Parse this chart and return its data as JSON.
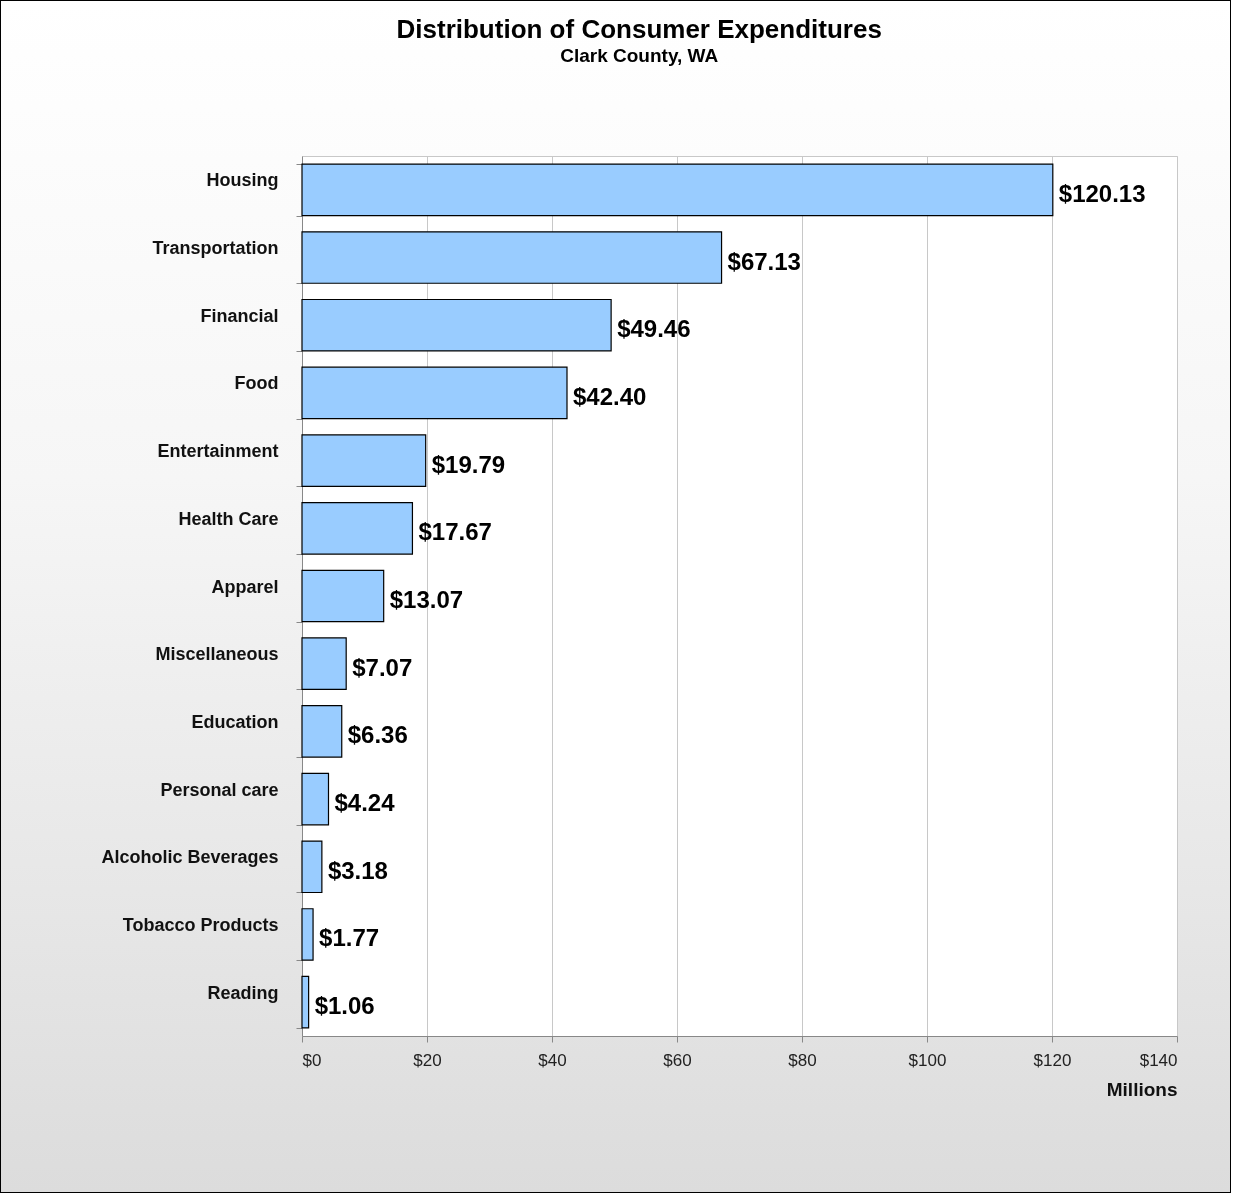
{
  "chart_data": {
    "type": "bar",
    "orientation": "horizontal",
    "title": "Distribution of Consumer Expenditures",
    "subtitle": "Clark County, WA",
    "xlabel": "Millions",
    "categories": [
      "Housing",
      "Transportation",
      "Financial",
      "Food",
      "Entertainment",
      "Health Care",
      "Apparel",
      "Miscellaneous",
      "Education",
      "Personal care",
      "Alcoholic Beverages",
      "Tobacco Products",
      "Reading"
    ],
    "values": [
      120.13,
      67.13,
      49.46,
      42.4,
      19.79,
      17.67,
      13.07,
      7.07,
      6.36,
      4.24,
      3.18,
      1.77,
      1.06
    ],
    "value_labels": [
      "$120.13",
      "$67.13",
      "$49.46",
      "$42.40",
      "$19.79",
      "$17.67",
      "$13.07",
      "$7.07",
      "$6.36",
      "$4.24",
      "$3.18",
      "$1.77",
      "$1.06"
    ],
    "color": "#99ccff",
    "xlim": [
      0,
      140
    ],
    "xticks": [
      {
        "value": 0,
        "label": "$0"
      },
      {
        "value": 20,
        "label": "$20"
      },
      {
        "value": 40,
        "label": "$40"
      },
      {
        "value": 60,
        "label": "$60"
      },
      {
        "value": 80,
        "label": "$80"
      },
      {
        "value": 100,
        "label": "$100"
      },
      {
        "value": 120,
        "label": "$120"
      },
      {
        "value": 140,
        "label": "$140"
      }
    ],
    "grid": "x"
  }
}
